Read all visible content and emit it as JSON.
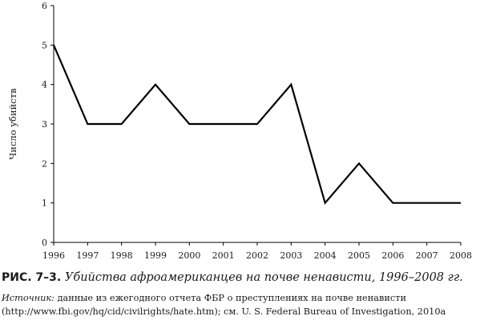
{
  "chart_data": {
    "type": "line",
    "x": [
      1996,
      1997,
      1998,
      1999,
      2000,
      2001,
      2002,
      2003,
      2004,
      2005,
      2006,
      2007,
      2008
    ],
    "y": [
      5,
      3,
      3,
      4,
      3,
      3,
      3,
      4,
      1,
      2,
      1,
      1,
      1
    ],
    "x_tick_labels": [
      "1996",
      "1997",
      "1998",
      "1999",
      "2000",
      "2001",
      "2002",
      "2003",
      "2004",
      "2005",
      "2006",
      "2007",
      "2008"
    ],
    "y_ticks": [
      0,
      1,
      2,
      3,
      4,
      5,
      6
    ],
    "ylim": [
      0,
      6
    ],
    "xlim": [
      1996,
      2008
    ],
    "xlabel": "",
    "ylabel": "Число убийств",
    "grid": false,
    "line_color": "#000000"
  },
  "caption": {
    "label": "РИС. 7–3.",
    "title": "Убийства афроамериканцев на почве ненависти, 1996–2008 гг."
  },
  "source": {
    "label": "Источник:",
    "text": "данные из ежегодного отчета ФБР о преступлениях на почве ненависти (http://www.fbi.gov/hq/cid/civilrights/hate.htm); см. U. S. Federal Bureau of Investigation, 2010a"
  }
}
